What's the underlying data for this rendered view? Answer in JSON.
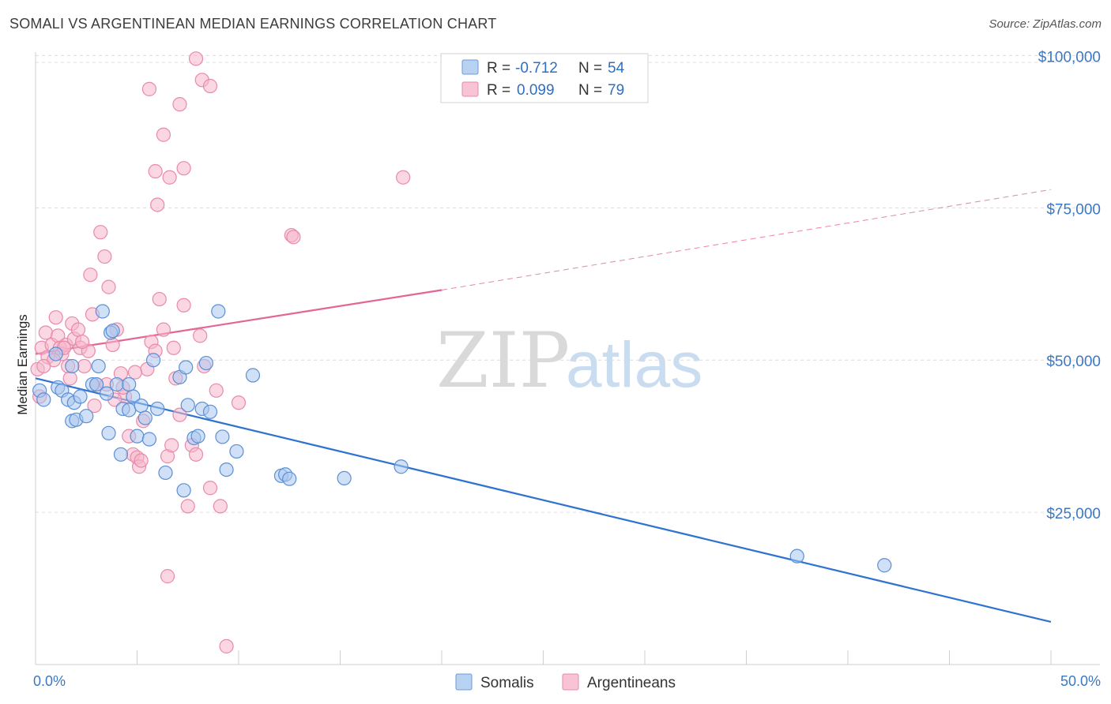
{
  "header": {
    "title": "SOMALI VS ARGENTINEAN MEDIAN EARNINGS CORRELATION CHART",
    "source": "Source: ZipAtlas.com"
  },
  "watermark": {
    "part1": "ZIP",
    "part2": "atlas"
  },
  "legend": {
    "row1": {
      "r_label": "R =",
      "r_value": "-0.712",
      "n_label": "N =",
      "n_value": "54"
    },
    "row2": {
      "r_label": "R =",
      "r_value": "0.099",
      "n_label": "N =",
      "n_value": "79"
    }
  },
  "bottom_legend": {
    "series1": "Somalis",
    "series2": "Argentineans"
  },
  "colors": {
    "somali_fill": "#a9c7ee",
    "somali_stroke": "#5b8fd6",
    "somali_line": "#2f73d0",
    "argentinean_fill": "#f6b6cb",
    "argentinean_stroke": "#e98aab",
    "argentinean_line": "#e46595",
    "grid": "#dcdcdc",
    "tick_label": "#3b78c4"
  },
  "chart_data": {
    "type": "scatter",
    "title": "SOMALI VS ARGENTINEAN MEDIAN EARNINGS CORRELATION CHART",
    "xlabel": "",
    "ylabel": "Median Earnings",
    "xlim": [
      0,
      50
    ],
    "ylim": [
      0,
      102000
    ],
    "x_tick_labels": [
      "0.0%",
      "50.0%"
    ],
    "y_ticks": [
      25000,
      50000,
      75000,
      100000
    ],
    "y_tick_labels": [
      "$25,000",
      "$50,000",
      "$75,000",
      "$100,000"
    ],
    "grid": true,
    "legend_position": "top-center",
    "series": [
      {
        "name": "Somalis",
        "r": -0.712,
        "n": 54,
        "trend": {
          "x0": 0,
          "y0": 47000,
          "x1": 50,
          "y1": 7000,
          "dashed_from_x": null
        },
        "points": [
          [
            0.2,
            45000
          ],
          [
            0.4,
            43500
          ],
          [
            1.0,
            51000
          ],
          [
            1.1,
            45500
          ],
          [
            1.3,
            45000
          ],
          [
            1.6,
            43500
          ],
          [
            1.8,
            49000
          ],
          [
            1.9,
            43000
          ],
          [
            1.8,
            40000
          ],
          [
            2.0,
            40200
          ],
          [
            2.5,
            40800
          ],
          [
            2.8,
            46000
          ],
          [
            3.0,
            46000
          ],
          [
            3.1,
            49000
          ],
          [
            3.3,
            58000
          ],
          [
            3.5,
            44500
          ],
          [
            3.7,
            54500
          ],
          [
            3.8,
            54800
          ],
          [
            4.0,
            46000
          ],
          [
            4.2,
            34500
          ],
          [
            4.3,
            42000
          ],
          [
            4.6,
            41800
          ],
          [
            4.8,
            44000
          ],
          [
            5.0,
            37500
          ],
          [
            5.2,
            42500
          ],
          [
            5.4,
            40500
          ],
          [
            5.6,
            37000
          ],
          [
            5.8,
            50000
          ],
          [
            6.0,
            42000
          ],
          [
            6.4,
            31500
          ],
          [
            7.1,
            47200
          ],
          [
            7.3,
            28600
          ],
          [
            7.4,
            48800
          ],
          [
            7.5,
            42600
          ],
          [
            7.8,
            37200
          ],
          [
            8.0,
            37500
          ],
          [
            8.2,
            42000
          ],
          [
            8.4,
            49500
          ],
          [
            8.6,
            41500
          ],
          [
            9.0,
            58000
          ],
          [
            9.2,
            37400
          ],
          [
            9.4,
            32000
          ],
          [
            9.9,
            35000
          ],
          [
            10.7,
            47500
          ],
          [
            12.1,
            31000
          ],
          [
            12.3,
            31200
          ],
          [
            12.5,
            30500
          ],
          [
            15.2,
            30600
          ],
          [
            18.0,
            32500
          ],
          [
            37.5,
            17800
          ],
          [
            41.8,
            16300
          ],
          [
            4.6,
            46000
          ],
          [
            2.2,
            44000
          ],
          [
            3.6,
            38000
          ]
        ]
      },
      {
        "name": "Argentineans",
        "r": 0.099,
        "n": 79,
        "trend": {
          "x0": 0,
          "y0": 51000,
          "x1": 20,
          "y1": 61500,
          "dashed_from_x": 20,
          "x_end": 50,
          "y_end": 78000
        },
        "points": [
          [
            0.1,
            48500
          ],
          [
            0.2,
            44000
          ],
          [
            0.3,
            52000
          ],
          [
            0.5,
            54500
          ],
          [
            0.6,
            50500
          ],
          [
            0.8,
            52500
          ],
          [
            1.0,
            57000
          ],
          [
            1.1,
            54000
          ],
          [
            1.2,
            52000
          ],
          [
            1.3,
            51000
          ],
          [
            1.5,
            52500
          ],
          [
            1.6,
            49000
          ],
          [
            1.8,
            56000
          ],
          [
            1.9,
            53500
          ],
          [
            2.1,
            55000
          ],
          [
            2.2,
            52000
          ],
          [
            2.4,
            49000
          ],
          [
            2.6,
            51500
          ],
          [
            2.7,
            64000
          ],
          [
            2.8,
            57500
          ],
          [
            3.0,
            46000
          ],
          [
            3.2,
            71000
          ],
          [
            3.4,
            67000
          ],
          [
            3.6,
            62000
          ],
          [
            3.8,
            52500
          ],
          [
            4.0,
            55000
          ],
          [
            4.2,
            47800
          ],
          [
            4.4,
            44000
          ],
          [
            4.6,
            37500
          ],
          [
            4.8,
            34500
          ],
          [
            5.0,
            34000
          ],
          [
            5.1,
            32500
          ],
          [
            5.3,
            40000
          ],
          [
            5.5,
            48500
          ],
          [
            5.7,
            53000
          ],
          [
            5.9,
            51500
          ],
          [
            6.1,
            60000
          ],
          [
            6.3,
            55000
          ],
          [
            6.5,
            34200
          ],
          [
            6.7,
            36000
          ],
          [
            6.9,
            47000
          ],
          [
            7.1,
            41000
          ],
          [
            7.3,
            59000
          ],
          [
            7.5,
            26000
          ],
          [
            7.7,
            36000
          ],
          [
            7.9,
            34500
          ],
          [
            8.1,
            54000
          ],
          [
            8.3,
            49000
          ],
          [
            8.6,
            29000
          ],
          [
            8.9,
            45000
          ],
          [
            9.1,
            26000
          ],
          [
            10.0,
            43000
          ],
          [
            5.6,
            94500
          ],
          [
            6.3,
            87000
          ],
          [
            5.9,
            81000
          ],
          [
            6.6,
            80000
          ],
          [
            6.0,
            75500
          ],
          [
            7.1,
            92000
          ],
          [
            7.3,
            81500
          ],
          [
            7.9,
            99500
          ],
          [
            8.2,
            96000
          ],
          [
            8.6,
            95000
          ],
          [
            12.6,
            70500
          ],
          [
            12.7,
            70200
          ],
          [
            18.1,
            80000
          ],
          [
            4.3,
            45500
          ],
          [
            3.9,
            43500
          ],
          [
            2.9,
            42500
          ],
          [
            5.2,
            33500
          ],
          [
            6.5,
            14500
          ],
          [
            9.4,
            3000
          ],
          [
            1.4,
            52000
          ],
          [
            0.9,
            50000
          ],
          [
            2.3,
            53000
          ],
          [
            3.5,
            46000
          ],
          [
            4.9,
            48000
          ],
          [
            6.8,
            52000
          ],
          [
            0.4,
            49000
          ],
          [
            1.7,
            47000
          ]
        ]
      }
    ]
  }
}
